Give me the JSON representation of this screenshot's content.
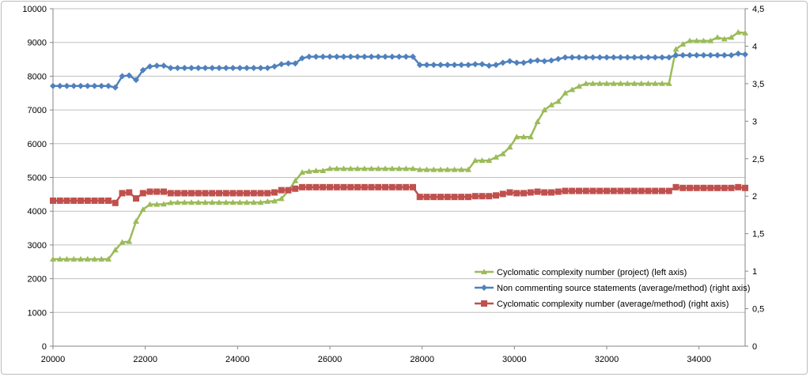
{
  "chart_data": {
    "type": "line",
    "title": "",
    "xlabel": "",
    "ylabel": "",
    "y2label": "",
    "xlim": [
      20000,
      35000
    ],
    "ylim": [
      0,
      10000
    ],
    "y2lim": [
      0,
      4.5
    ],
    "grid": "horizontal",
    "legend_position": "bottom-right",
    "x_ticks": [
      "20000",
      "22000",
      "24000",
      "26000",
      "28000",
      "30000",
      "32000",
      "34000"
    ],
    "x_tick_values": [
      20000,
      22000,
      24000,
      26000,
      28000,
      30000,
      32000,
      34000
    ],
    "y_ticks": [
      "0",
      "1000",
      "2000",
      "3000",
      "4000",
      "5000",
      "6000",
      "7000",
      "8000",
      "9000",
      "10000"
    ],
    "y_tick_values": [
      0,
      1000,
      2000,
      3000,
      4000,
      5000,
      6000,
      7000,
      8000,
      9000,
      10000
    ],
    "y2_ticks": [
      "0",
      "0,5",
      "1",
      "1,5",
      "2",
      "2,5",
      "3",
      "3,5",
      "4",
      "4,5"
    ],
    "y2_tick_values": [
      0,
      0.5,
      1,
      1.5,
      2,
      2.5,
      3,
      3.5,
      4,
      4.5
    ],
    "x": [
      20000,
      20150,
      20300,
      20450,
      20600,
      20750,
      20900,
      21050,
      21200,
      21350,
      21500,
      21650,
      21800,
      21950,
      22100,
      22250,
      22400,
      22550,
      22700,
      22850,
      23000,
      23150,
      23300,
      23450,
      23600,
      23750,
      23900,
      24050,
      24200,
      24350,
      24500,
      24650,
      24800,
      24950,
      25100,
      25250,
      25400,
      25550,
      25700,
      25850,
      26000,
      26150,
      26300,
      26450,
      26600,
      26750,
      26900,
      27050,
      27200,
      27350,
      27500,
      27650,
      27800,
      27950,
      28100,
      28250,
      28400,
      28550,
      28700,
      28850,
      29000,
      29150,
      29300,
      29450,
      29600,
      29750,
      29900,
      30050,
      30200,
      30350,
      30500,
      30650,
      30800,
      30950,
      31100,
      31250,
      31400,
      31550,
      31700,
      31850,
      32000,
      32150,
      32300,
      32450,
      32600,
      32750,
      32900,
      33050,
      33200,
      33350,
      33500,
      33650,
      33800,
      33950,
      34100,
      34250,
      34400,
      34550,
      34700,
      34850,
      35000
    ],
    "series": [
      {
        "name": "Cyclomatic complexity number (project) (left axis)",
        "axis": "left",
        "color": "#9bbb59",
        "marker": "triangle",
        "values": [
          2580,
          2580,
          2580,
          2580,
          2580,
          2580,
          2580,
          2580,
          2580,
          2850,
          3080,
          3100,
          3700,
          4050,
          4200,
          4200,
          4210,
          4250,
          4260,
          4260,
          4260,
          4260,
          4260,
          4260,
          4260,
          4260,
          4260,
          4260,
          4260,
          4260,
          4260,
          4290,
          4300,
          4370,
          4600,
          4900,
          5150,
          5180,
          5200,
          5200,
          5260,
          5260,
          5260,
          5260,
          5260,
          5260,
          5260,
          5260,
          5260,
          5260,
          5260,
          5260,
          5260,
          5230,
          5230,
          5230,
          5230,
          5230,
          5230,
          5230,
          5230,
          5500,
          5500,
          5500,
          5600,
          5700,
          5900,
          6200,
          6200,
          6200,
          6650,
          7000,
          7150,
          7250,
          7500,
          7600,
          7700,
          7780,
          7780,
          7780,
          7780,
          7780,
          7780,
          7780,
          7780,
          7780,
          7780,
          7780,
          7780,
          7780,
          8800,
          8950,
          9050,
          9050,
          9050,
          9050,
          9150,
          9100,
          9150,
          9300,
          9280
        ]
      },
      {
        "name": "Non commenting source statements (average/method) (right axis)",
        "axis": "right",
        "color": "#4f81bd",
        "marker": "diamond",
        "values": [
          3.47,
          3.47,
          3.47,
          3.47,
          3.47,
          3.47,
          3.47,
          3.47,
          3.47,
          3.45,
          3.6,
          3.61,
          3.55,
          3.68,
          3.73,
          3.74,
          3.74,
          3.71,
          3.71,
          3.71,
          3.71,
          3.71,
          3.71,
          3.71,
          3.71,
          3.71,
          3.71,
          3.71,
          3.71,
          3.71,
          3.71,
          3.71,
          3.73,
          3.76,
          3.77,
          3.77,
          3.84,
          3.86,
          3.86,
          3.86,
          3.86,
          3.86,
          3.86,
          3.86,
          3.86,
          3.86,
          3.86,
          3.86,
          3.86,
          3.86,
          3.86,
          3.86,
          3.86,
          3.75,
          3.75,
          3.75,
          3.75,
          3.75,
          3.75,
          3.75,
          3.75,
          3.76,
          3.76,
          3.74,
          3.75,
          3.78,
          3.8,
          3.78,
          3.78,
          3.8,
          3.81,
          3.8,
          3.81,
          3.83,
          3.85,
          3.85,
          3.85,
          3.85,
          3.85,
          3.85,
          3.85,
          3.85,
          3.85,
          3.85,
          3.85,
          3.85,
          3.85,
          3.85,
          3.85,
          3.85,
          3.88,
          3.88,
          3.88,
          3.88,
          3.88,
          3.88,
          3.88,
          3.88,
          3.88,
          3.9,
          3.89
        ]
      },
      {
        "name": "Cyclomatic complexity number (average/method) (right axis)",
        "axis": "right",
        "color": "#c0504d",
        "marker": "square",
        "values": [
          1.94,
          1.94,
          1.94,
          1.94,
          1.94,
          1.94,
          1.94,
          1.94,
          1.94,
          1.91,
          2.04,
          2.05,
          1.97,
          2.04,
          2.06,
          2.06,
          2.06,
          2.04,
          2.04,
          2.04,
          2.04,
          2.04,
          2.04,
          2.04,
          2.04,
          2.04,
          2.04,
          2.04,
          2.04,
          2.04,
          2.04,
          2.04,
          2.05,
          2.08,
          2.08,
          2.1,
          2.12,
          2.12,
          2.12,
          2.12,
          2.12,
          2.12,
          2.12,
          2.12,
          2.12,
          2.12,
          2.12,
          2.12,
          2.12,
          2.12,
          2.12,
          2.12,
          2.12,
          1.99,
          1.99,
          1.99,
          1.99,
          1.99,
          1.99,
          1.99,
          1.99,
          2.0,
          2.0,
          2.0,
          2.01,
          2.03,
          2.05,
          2.04,
          2.04,
          2.05,
          2.06,
          2.05,
          2.05,
          2.06,
          2.07,
          2.07,
          2.07,
          2.07,
          2.07,
          2.07,
          2.07,
          2.07,
          2.07,
          2.07,
          2.07,
          2.07,
          2.07,
          2.07,
          2.07,
          2.07,
          2.12,
          2.11,
          2.11,
          2.11,
          2.11,
          2.11,
          2.11,
          2.11,
          2.11,
          2.12,
          2.11
        ]
      }
    ]
  }
}
